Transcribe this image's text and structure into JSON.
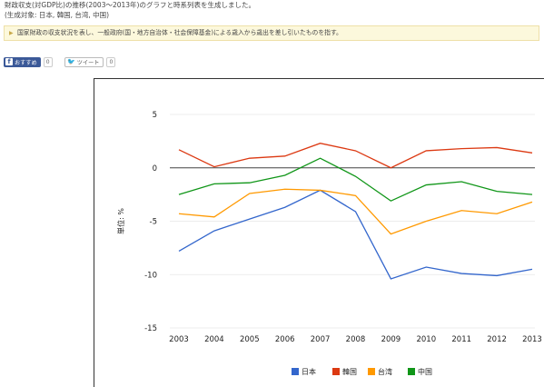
{
  "intro": {
    "line1": "財政収支(対GDP比)の推移(2003〜2013年)のグラフと時系列表を生成しました。",
    "line2": "(生成対象: 日本, 韓国, 台湾, 中国)"
  },
  "note": {
    "text": "国家財政の収支状況を表し、一般政府(国・地方自治体・社会保障基金)による歳入から歳出を差し引いたものを指す。"
  },
  "share": {
    "facebook_label": "おすすめ",
    "facebook_count": "0",
    "twitter_label": "ツイート",
    "twitter_count": "0"
  },
  "colors": {
    "japan": "#3366cc",
    "korea": "#dc3912",
    "taiwan": "#ff9900",
    "china": "#109618"
  },
  "chart_data": {
    "type": "line",
    "title": "",
    "xlabel": "",
    "ylabel": "単位: %",
    "ylim": [
      -15,
      5
    ],
    "yticks": [
      "5",
      "0",
      "-5",
      "-10",
      "-15"
    ],
    "ytick_values": [
      5,
      0,
      -5,
      -10,
      -15
    ],
    "categories": [
      "2003",
      "2004",
      "2005",
      "2006",
      "2007",
      "2008",
      "2009",
      "2010",
      "2011",
      "2012",
      "2013"
    ],
    "grid": true,
    "legend_position": "bottom",
    "series": [
      {
        "name": "日本",
        "color": "#3366cc",
        "values": [
          -7.8,
          -5.9,
          -4.8,
          -3.7,
          -2.1,
          -4.1,
          -10.4,
          -9.3,
          -9.9,
          -10.1,
          -9.5
        ]
      },
      {
        "name": "韓国",
        "color": "#dc3912",
        "values": [
          1.7,
          0.1,
          0.9,
          1.1,
          2.3,
          1.6,
          0.0,
          1.6,
          1.8,
          1.9,
          1.4
        ]
      },
      {
        "name": "台湾",
        "color": "#ff9900",
        "values": [
          -4.3,
          -4.6,
          -2.4,
          -2.0,
          -2.1,
          -2.6,
          -6.2,
          -5.0,
          -4.0,
          -4.3,
          -3.2
        ]
      },
      {
        "name": "中国",
        "color": "#109618",
        "values": [
          -2.5,
          -1.5,
          -1.4,
          -0.7,
          0.9,
          -0.8,
          -3.1,
          -1.6,
          -1.3,
          -2.2,
          -2.5
        ]
      }
    ]
  }
}
